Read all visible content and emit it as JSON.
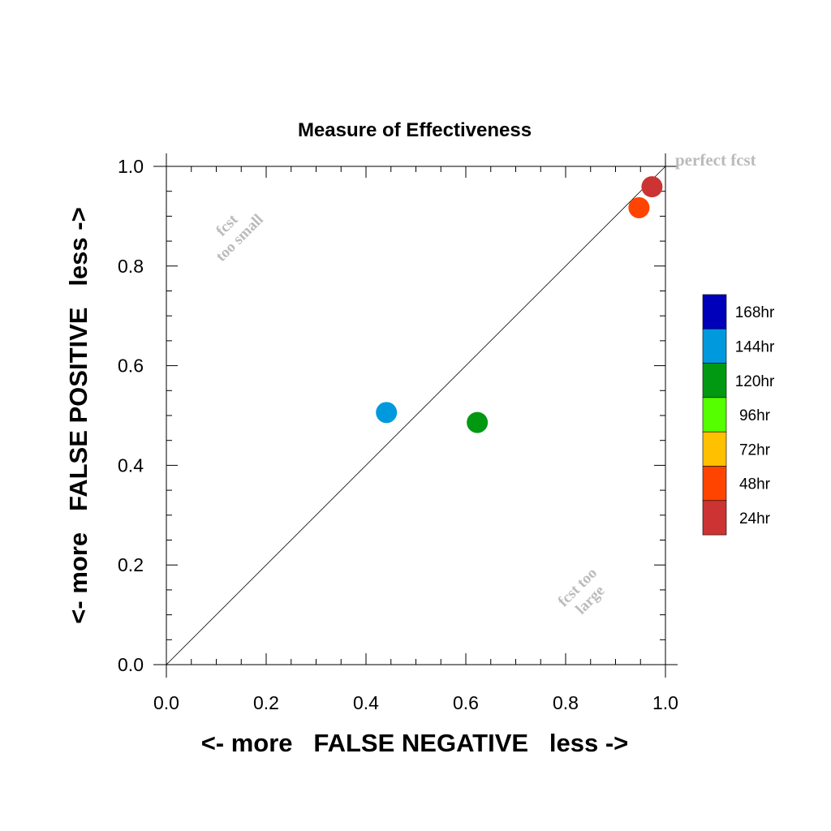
{
  "chart_data": {
    "type": "scatter",
    "title": "Measure of Effectiveness",
    "xlabel": "<- more   FALSE NEGATIVE   less ->",
    "ylabel": "<- more   FALSE POSITIVE   less ->",
    "xlim": [
      0.0,
      1.0
    ],
    "ylim": [
      0.0,
      1.0
    ],
    "x_ticks": [
      "0.0",
      "0.2",
      "0.4",
      "0.6",
      "0.8",
      "1.0"
    ],
    "y_ticks": [
      "0.0",
      "0.2",
      "0.4",
      "0.6",
      "0.8",
      "1.0"
    ],
    "grid": false,
    "reference_line": {
      "from": [
        0,
        0
      ],
      "to": [
        1,
        1
      ]
    },
    "points": [
      {
        "series": "24hr",
        "x": 0.973,
        "y": 0.959,
        "color": "#cc3333"
      },
      {
        "series": "48hr",
        "x": 0.947,
        "y": 0.917,
        "color": "#ff4400"
      },
      {
        "series": "120hr",
        "x": 0.623,
        "y": 0.486,
        "color": "#009911"
      },
      {
        "series": "144hr",
        "x": 0.441,
        "y": 0.506,
        "color": "#0099dd"
      }
    ],
    "legend": {
      "placement": "right",
      "items": [
        {
          "label": "168hr",
          "color": "#0000bb"
        },
        {
          "label": "144hr",
          "color": "#0099dd"
        },
        {
          "label": "120hr",
          "color": "#009911"
        },
        {
          "label": "96hr",
          "color": "#55ff00"
        },
        {
          "label": "72hr",
          "color": "#ffc000"
        },
        {
          "label": "48hr",
          "color": "#ff4400"
        },
        {
          "label": "24hr",
          "color": "#cc3333"
        }
      ]
    },
    "annotations": {
      "perfect": "perfect fcst",
      "too_small": [
        "fcst",
        "too small"
      ],
      "too_large": [
        "fcst too",
        "large"
      ]
    }
  }
}
